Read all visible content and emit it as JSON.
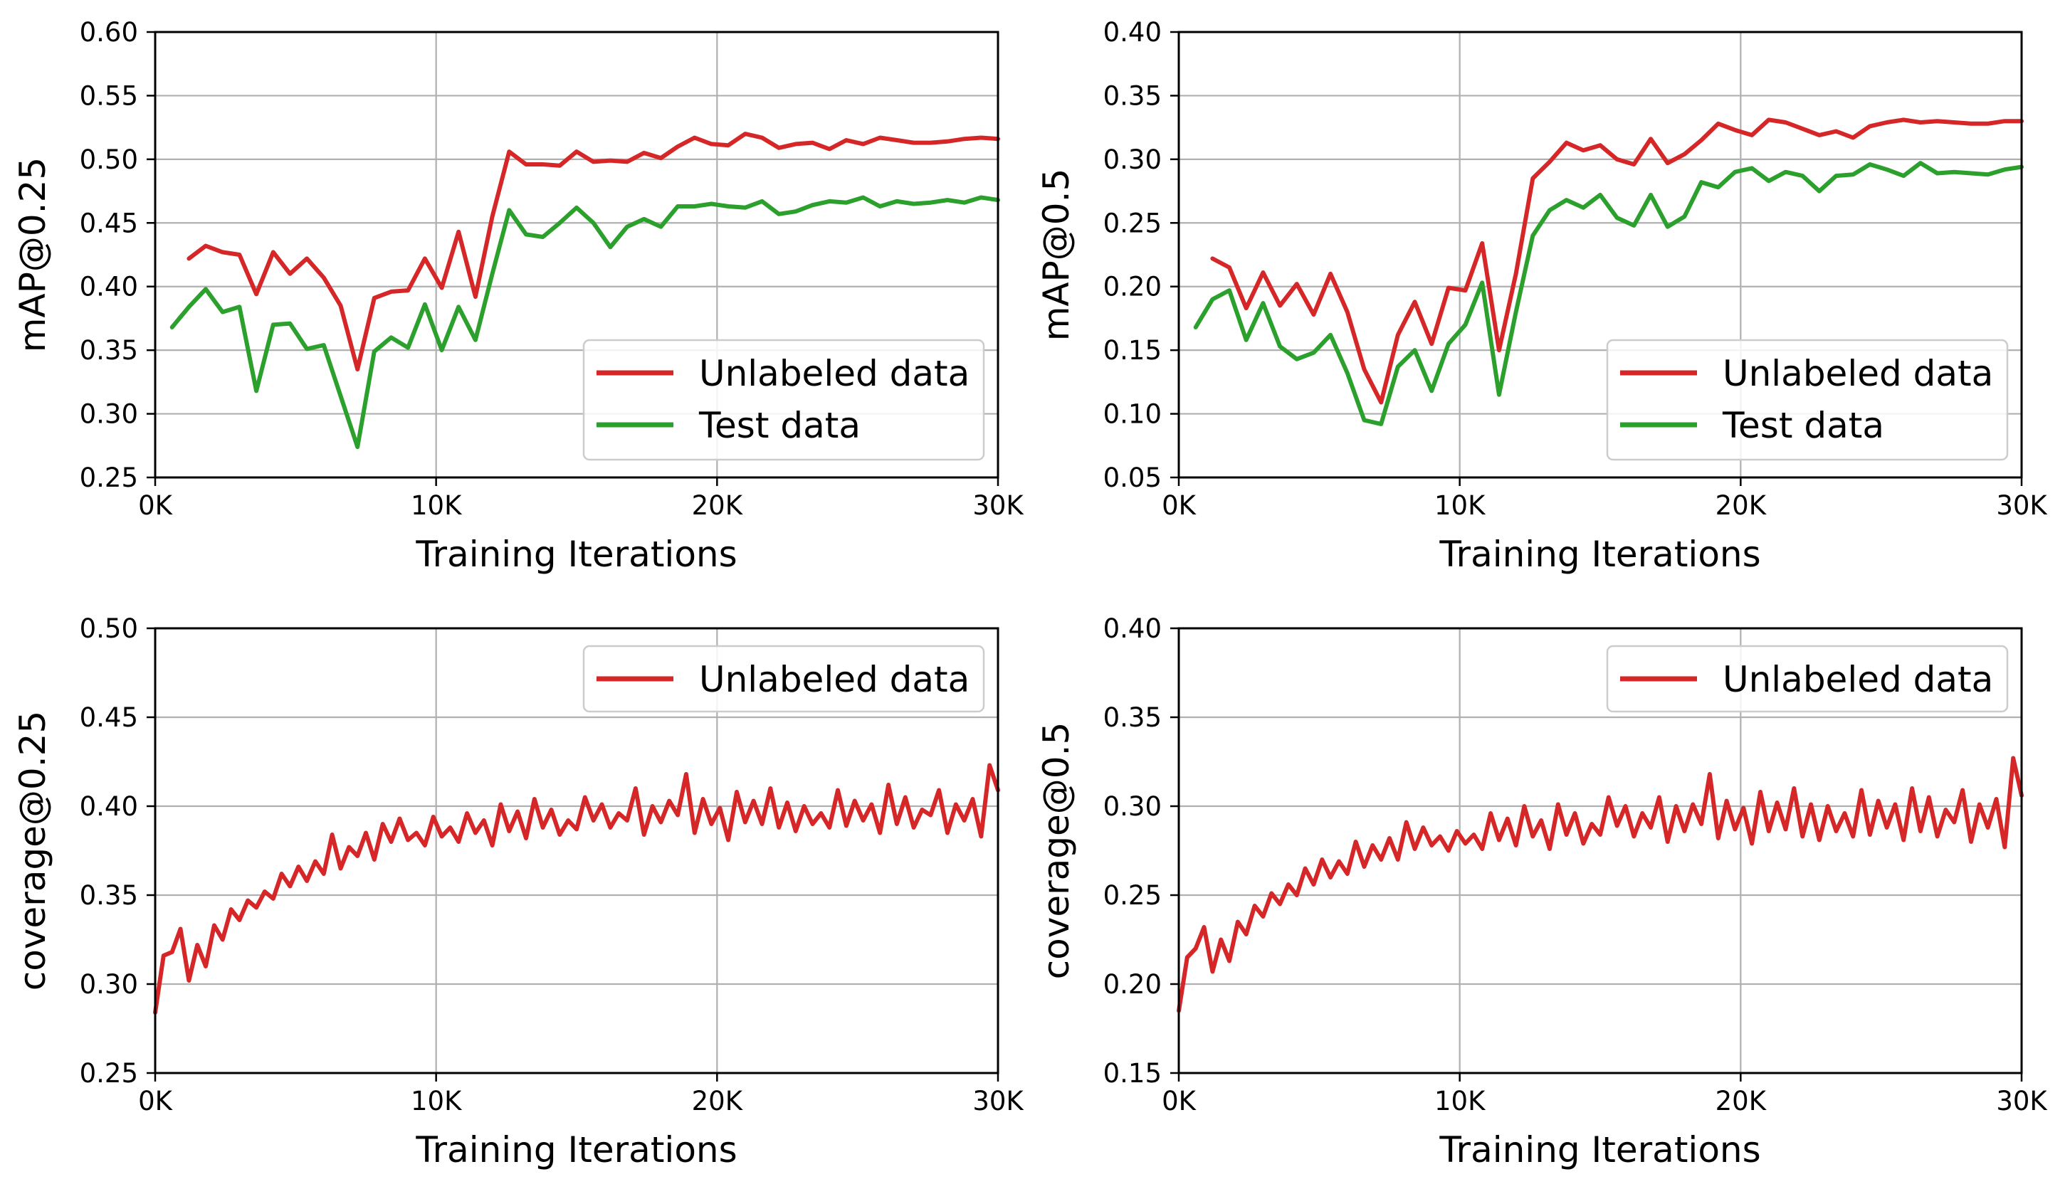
{
  "colors": {
    "unlabeled": "#d62728",
    "test": "#2ca02c",
    "grid": "#b0b0b0"
  },
  "chart_data": [
    {
      "type": "line",
      "xlabel": "Training Iterations",
      "ylabel": "mAP@0.25",
      "xlim": [
        0,
        30000
      ],
      "ylim": [
        0.25,
        0.6
      ],
      "xticks": [
        0,
        10000,
        20000,
        30000
      ],
      "xtick_labels": [
        "0K",
        "10K",
        "20K",
        "30K"
      ],
      "yticks": [
        0.25,
        0.3,
        0.35,
        0.4,
        0.45,
        0.5,
        0.55,
        0.6
      ],
      "ytick_labels": [
        "0.25",
        "0.30",
        "0.35",
        "0.40",
        "0.45",
        "0.50",
        "0.55",
        "0.60"
      ],
      "grid": true,
      "legend": "lower-right",
      "series": [
        {
          "name": "Unlabeled data",
          "color": "#d62728",
          "x": [
            1200,
            1800,
            2400,
            3000,
            3600,
            4200,
            4800,
            5400,
            6000,
            6600,
            7200,
            7800,
            8400,
            9000,
            9600,
            10200,
            10800,
            11400,
            12000,
            12600,
            13200,
            13800,
            14400,
            15000,
            15600,
            16200,
            16800,
            17400,
            18000,
            18600,
            19200,
            19800,
            20400,
            21000,
            21600,
            22200,
            22800,
            23400,
            24000,
            24600,
            25200,
            25800,
            26400,
            27000,
            27600,
            28200,
            28800,
            29400,
            30000
          ],
          "values": [
            0.422,
            0.432,
            0.427,
            0.425,
            0.394,
            0.427,
            0.41,
            0.422,
            0.407,
            0.385,
            0.335,
            0.391,
            0.396,
            0.397,
            0.422,
            0.399,
            0.443,
            0.392,
            0.455,
            0.506,
            0.496,
            0.496,
            0.495,
            0.506,
            0.498,
            0.499,
            0.498,
            0.505,
            0.501,
            0.51,
            0.517,
            0.512,
            0.511,
            0.52,
            0.517,
            0.509,
            0.512,
            0.513,
            0.508,
            0.515,
            0.512,
            0.517,
            0.515,
            0.513,
            0.513,
            0.514,
            0.516,
            0.517,
            0.516
          ]
        },
        {
          "name": "Test data",
          "color": "#2ca02c",
          "x": [
            600,
            1200,
            1800,
            2400,
            3000,
            3600,
            4200,
            4800,
            5400,
            6000,
            6600,
            7200,
            7800,
            8400,
            9000,
            9600,
            10200,
            10800,
            11400,
            12000,
            12600,
            13200,
            13800,
            14400,
            15000,
            15600,
            16200,
            16800,
            17400,
            18000,
            18600,
            19200,
            19800,
            20400,
            21000,
            21600,
            22200,
            22800,
            23400,
            24000,
            24600,
            25200,
            25800,
            26400,
            27000,
            27600,
            28200,
            28800,
            29400,
            30000
          ],
          "values": [
            0.368,
            0.384,
            0.398,
            0.38,
            0.384,
            0.318,
            0.37,
            0.371,
            0.351,
            0.354,
            0.314,
            0.274,
            0.349,
            0.36,
            0.352,
            0.386,
            0.35,
            0.384,
            0.358,
            0.41,
            0.46,
            0.441,
            0.439,
            0.45,
            0.462,
            0.45,
            0.431,
            0.447,
            0.453,
            0.447,
            0.463,
            0.463,
            0.465,
            0.463,
            0.462,
            0.467,
            0.457,
            0.459,
            0.464,
            0.467,
            0.466,
            0.47,
            0.463,
            0.467,
            0.465,
            0.466,
            0.468,
            0.466,
            0.47,
            0.468
          ]
        }
      ]
    },
    {
      "type": "line",
      "xlabel": "Training Iterations",
      "ylabel": "mAP@0.5",
      "xlim": [
        0,
        30000
      ],
      "ylim": [
        0.05,
        0.4
      ],
      "xticks": [
        0,
        10000,
        20000,
        30000
      ],
      "xtick_labels": [
        "0K",
        "10K",
        "20K",
        "30K"
      ],
      "yticks": [
        0.05,
        0.1,
        0.15,
        0.2,
        0.25,
        0.3,
        0.35,
        0.4
      ],
      "ytick_labels": [
        "0.05",
        "0.10",
        "0.15",
        "0.20",
        "0.25",
        "0.30",
        "0.35",
        "0.40"
      ],
      "grid": true,
      "legend": "lower-right",
      "series": [
        {
          "name": "Unlabeled data",
          "color": "#d62728",
          "x": [
            1200,
            1800,
            2400,
            3000,
            3600,
            4200,
            4800,
            5400,
            6000,
            6600,
            7200,
            7800,
            8400,
            9000,
            9600,
            10200,
            10800,
            11400,
            12000,
            12600,
            13200,
            13800,
            14400,
            15000,
            15600,
            16200,
            16800,
            17400,
            18000,
            18600,
            19200,
            19800,
            20400,
            21000,
            21600,
            22200,
            22800,
            23400,
            24000,
            24600,
            25200,
            25800,
            26400,
            27000,
            27600,
            28200,
            28800,
            29400,
            30000
          ],
          "values": [
            0.222,
            0.215,
            0.183,
            0.211,
            0.185,
            0.202,
            0.178,
            0.21,
            0.18,
            0.135,
            0.109,
            0.162,
            0.188,
            0.155,
            0.199,
            0.197,
            0.234,
            0.15,
            0.21,
            0.285,
            0.298,
            0.313,
            0.307,
            0.311,
            0.3,
            0.296,
            0.316,
            0.297,
            0.304,
            0.315,
            0.328,
            0.323,
            0.319,
            0.331,
            0.329,
            0.324,
            0.319,
            0.322,
            0.317,
            0.326,
            0.329,
            0.331,
            0.329,
            0.33,
            0.329,
            0.328,
            0.328,
            0.33,
            0.33
          ]
        },
        {
          "name": "Test data",
          "color": "#2ca02c",
          "x": [
            600,
            1200,
            1800,
            2400,
            3000,
            3600,
            4200,
            4800,
            5400,
            6000,
            6600,
            7200,
            7800,
            8400,
            9000,
            9600,
            10200,
            10800,
            11400,
            12000,
            12600,
            13200,
            13800,
            14400,
            15000,
            15600,
            16200,
            16800,
            17400,
            18000,
            18600,
            19200,
            19800,
            20400,
            21000,
            21600,
            22200,
            22800,
            23400,
            24000,
            24600,
            25200,
            25800,
            26400,
            27000,
            27600,
            28200,
            28800,
            29400,
            30000
          ],
          "values": [
            0.168,
            0.19,
            0.197,
            0.158,
            0.187,
            0.153,
            0.143,
            0.148,
            0.162,
            0.132,
            0.095,
            0.092,
            0.137,
            0.15,
            0.118,
            0.155,
            0.17,
            0.203,
            0.115,
            0.18,
            0.24,
            0.26,
            0.268,
            0.262,
            0.272,
            0.254,
            0.248,
            0.272,
            0.247,
            0.255,
            0.282,
            0.278,
            0.29,
            0.293,
            0.283,
            0.29,
            0.287,
            0.275,
            0.287,
            0.288,
            0.296,
            0.292,
            0.287,
            0.297,
            0.289,
            0.29,
            0.289,
            0.288,
            0.292,
            0.294
          ]
        }
      ]
    },
    {
      "type": "line",
      "xlabel": "Training Iterations",
      "ylabel": "coverage@0.25",
      "xlim": [
        0,
        30000
      ],
      "ylim": [
        0.25,
        0.5
      ],
      "xticks": [
        0,
        10000,
        20000,
        30000
      ],
      "xtick_labels": [
        "0K",
        "10K",
        "20K",
        "30K"
      ],
      "yticks": [
        0.25,
        0.3,
        0.35,
        0.4,
        0.45,
        0.5
      ],
      "ytick_labels": [
        "0.25",
        "0.30",
        "0.35",
        "0.40",
        "0.45",
        "0.50"
      ],
      "grid": true,
      "legend": "top-right",
      "series": [
        {
          "name": "Unlabeled data",
          "color": "#d62728",
          "x": [
            0,
            300,
            600,
            900,
            1200,
            1500,
            1800,
            2100,
            2400,
            2700,
            3000,
            3300,
            3600,
            3900,
            4200,
            4500,
            4800,
            5100,
            5400,
            5700,
            6000,
            6300,
            6600,
            6900,
            7200,
            7500,
            7800,
            8100,
            8400,
            8700,
            9000,
            9300,
            9600,
            9900,
            10200,
            10500,
            10800,
            11100,
            11400,
            11700,
            12000,
            12300,
            12600,
            12900,
            13200,
            13500,
            13800,
            14100,
            14400,
            14700,
            15000,
            15300,
            15600,
            15900,
            16200,
            16500,
            16800,
            17100,
            17400,
            17700,
            18000,
            18300,
            18600,
            18900,
            19200,
            19500,
            19800,
            20100,
            20400,
            20700,
            21000,
            21300,
            21600,
            21900,
            22200,
            22500,
            22800,
            23100,
            23400,
            23700,
            24000,
            24300,
            24600,
            24900,
            25200,
            25500,
            25800,
            26100,
            26400,
            26700,
            27000,
            27300,
            27600,
            27900,
            28200,
            28500,
            28800,
            29100,
            29400,
            29700,
            30000
          ],
          "values": [
            0.284,
            0.316,
            0.318,
            0.331,
            0.302,
            0.322,
            0.31,
            0.333,
            0.325,
            0.342,
            0.336,
            0.347,
            0.343,
            0.352,
            0.348,
            0.362,
            0.355,
            0.366,
            0.358,
            0.369,
            0.362,
            0.384,
            0.365,
            0.377,
            0.372,
            0.385,
            0.37,
            0.39,
            0.38,
            0.393,
            0.381,
            0.385,
            0.378,
            0.394,
            0.383,
            0.388,
            0.38,
            0.396,
            0.385,
            0.392,
            0.378,
            0.401,
            0.386,
            0.397,
            0.382,
            0.404,
            0.388,
            0.398,
            0.384,
            0.392,
            0.387,
            0.405,
            0.392,
            0.401,
            0.388,
            0.396,
            0.392,
            0.41,
            0.384,
            0.4,
            0.391,
            0.403,
            0.395,
            0.418,
            0.385,
            0.404,
            0.39,
            0.399,
            0.381,
            0.408,
            0.391,
            0.403,
            0.39,
            0.41,
            0.388,
            0.402,
            0.386,
            0.4,
            0.39,
            0.396,
            0.388,
            0.409,
            0.389,
            0.403,
            0.392,
            0.401,
            0.385,
            0.412,
            0.39,
            0.405,
            0.388,
            0.398,
            0.395,
            0.409,
            0.385,
            0.401,
            0.392,
            0.404,
            0.383,
            0.423,
            0.409
          ]
        }
      ]
    },
    {
      "type": "line",
      "xlabel": "Training Iterations",
      "ylabel": "coverage@0.5",
      "xlim": [
        0,
        30000
      ],
      "ylim": [
        0.15,
        0.4
      ],
      "xticks": [
        0,
        10000,
        20000,
        30000
      ],
      "xtick_labels": [
        "0K",
        "10K",
        "20K",
        "30K"
      ],
      "yticks": [
        0.15,
        0.2,
        0.25,
        0.3,
        0.35,
        0.4
      ],
      "ytick_labels": [
        "0.15",
        "0.20",
        "0.25",
        "0.30",
        "0.35",
        "0.40"
      ],
      "grid": true,
      "legend": "top-right",
      "series": [
        {
          "name": "Unlabeled data",
          "color": "#d62728",
          "x": [
            0,
            300,
            600,
            900,
            1200,
            1500,
            1800,
            2100,
            2400,
            2700,
            3000,
            3300,
            3600,
            3900,
            4200,
            4500,
            4800,
            5100,
            5400,
            5700,
            6000,
            6300,
            6600,
            6900,
            7200,
            7500,
            7800,
            8100,
            8400,
            8700,
            9000,
            9300,
            9600,
            9900,
            10200,
            10500,
            10800,
            11100,
            11400,
            11700,
            12000,
            12300,
            12600,
            12900,
            13200,
            13500,
            13800,
            14100,
            14400,
            14700,
            15000,
            15300,
            15600,
            15900,
            16200,
            16500,
            16800,
            17100,
            17400,
            17700,
            18000,
            18300,
            18600,
            18900,
            19200,
            19500,
            19800,
            20100,
            20400,
            20700,
            21000,
            21300,
            21600,
            21900,
            22200,
            22500,
            22800,
            23100,
            23400,
            23700,
            24000,
            24300,
            24600,
            24900,
            25200,
            25500,
            25800,
            26100,
            26400,
            26700,
            27000,
            27300,
            27600,
            27900,
            28200,
            28500,
            28800,
            29100,
            29400,
            29700,
            30000
          ],
          "values": [
            0.185,
            0.215,
            0.22,
            0.232,
            0.207,
            0.225,
            0.213,
            0.235,
            0.228,
            0.244,
            0.238,
            0.251,
            0.245,
            0.256,
            0.25,
            0.265,
            0.256,
            0.27,
            0.26,
            0.269,
            0.262,
            0.28,
            0.266,
            0.278,
            0.27,
            0.282,
            0.27,
            0.291,
            0.276,
            0.288,
            0.278,
            0.283,
            0.275,
            0.286,
            0.279,
            0.284,
            0.276,
            0.296,
            0.281,
            0.293,
            0.278,
            0.3,
            0.283,
            0.292,
            0.276,
            0.301,
            0.284,
            0.296,
            0.279,
            0.29,
            0.284,
            0.305,
            0.289,
            0.3,
            0.283,
            0.296,
            0.288,
            0.305,
            0.28,
            0.3,
            0.286,
            0.301,
            0.29,
            0.318,
            0.282,
            0.303,
            0.287,
            0.299,
            0.279,
            0.308,
            0.286,
            0.302,
            0.287,
            0.31,
            0.283,
            0.301,
            0.281,
            0.3,
            0.286,
            0.296,
            0.283,
            0.309,
            0.284,
            0.303,
            0.288,
            0.301,
            0.281,
            0.31,
            0.286,
            0.305,
            0.283,
            0.298,
            0.291,
            0.309,
            0.28,
            0.301,
            0.288,
            0.304,
            0.277,
            0.327,
            0.306
          ]
        }
      ]
    }
  ]
}
